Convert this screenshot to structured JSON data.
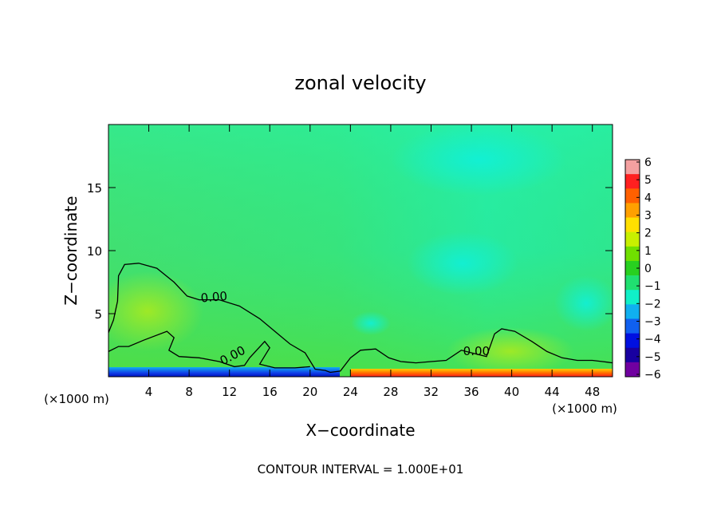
{
  "chart_data": {
    "type": "heatmap",
    "title": "zonal velocity",
    "xlabel": "X−coordinate",
    "ylabel": "Z−coordinate",
    "x_unit_left": "(×1000 m)",
    "x_unit_right": "(×1000 m)",
    "xlim": [
      0,
      50
    ],
    "ylim": [
      0,
      20
    ],
    "x_ticks": [
      4,
      8,
      12,
      16,
      20,
      24,
      28,
      32,
      36,
      40,
      44,
      48
    ],
    "x_tick_labels": [
      "4",
      "8",
      "12",
      "16",
      "20",
      "24",
      "28",
      "32",
      "36",
      "40",
      "44",
      "48"
    ],
    "y_ticks": [
      5,
      10,
      15
    ],
    "y_tick_labels": [
      "5",
      "10",
      "15"
    ],
    "footer": "CONTOUR INTERVAL = 1.000E+01",
    "contour_label": "0.00",
    "contour_labels": [
      {
        "text": "0.00",
        "x": 10.5,
        "z": 6.0,
        "angle": -5
      },
      {
        "text": "0.00",
        "x": 12.5,
        "z": 1.4,
        "angle": -28
      },
      {
        "text": "0.00",
        "x": 36.5,
        "z": 1.7,
        "angle": 0
      }
    ],
    "zero_contour": [
      [
        0,
        3.5
      ],
      [
        0.5,
        4.5
      ],
      [
        0.9,
        6.0
      ],
      [
        1.0,
        8.0
      ],
      [
        1.6,
        8.9
      ],
      [
        3.0,
        9.0
      ],
      [
        4.8,
        8.6
      ],
      [
        6.5,
        7.5
      ],
      [
        7.8,
        6.4
      ],
      [
        9.0,
        6.1
      ],
      [
        11.0,
        6.1
      ],
      [
        13.0,
        5.6
      ],
      [
        15.0,
        4.6
      ],
      [
        16.5,
        3.6
      ],
      [
        18.0,
        2.6
      ],
      [
        19.5,
        1.9
      ],
      [
        20.5,
        0.6
      ],
      [
        21.5,
        0.5
      ],
      [
        22.0,
        0.35
      ],
      [
        23.0,
        0.45
      ],
      [
        24.0,
        1.5
      ],
      [
        25.0,
        2.1
      ],
      [
        26.5,
        2.2
      ],
      [
        27.8,
        1.5
      ],
      [
        29.0,
        1.2
      ],
      [
        30.5,
        1.1
      ],
      [
        32.0,
        1.2
      ],
      [
        33.5,
        1.3
      ],
      [
        35.0,
        2.1
      ],
      [
        36.5,
        1.8
      ],
      [
        37.5,
        1.6
      ],
      [
        38.3,
        3.4
      ],
      [
        39.0,
        3.8
      ],
      [
        40.3,
        3.6
      ],
      [
        42.0,
        2.8
      ],
      [
        43.5,
        2.0
      ],
      [
        45.0,
        1.5
      ],
      [
        46.5,
        1.3
      ],
      [
        48.0,
        1.3
      ],
      [
        49.0,
        1.2
      ],
      [
        50.0,
        1.1
      ]
    ],
    "lower_contour": [
      [
        0,
        2.0
      ],
      [
        1.0,
        2.4
      ],
      [
        2.0,
        2.4
      ],
      [
        3.5,
        2.9
      ],
      [
        5.8,
        3.6
      ],
      [
        6.5,
        3.1
      ],
      [
        6.0,
        2.1
      ],
      [
        7.0,
        1.6
      ],
      [
        9.0,
        1.5
      ],
      [
        11.0,
        1.2
      ],
      [
        12.5,
        0.8
      ],
      [
        13.5,
        0.9
      ],
      [
        14.0,
        1.5
      ],
      [
        15.5,
        2.8
      ],
      [
        16.0,
        2.3
      ],
      [
        15.0,
        1.0
      ],
      [
        16.5,
        0.7
      ],
      [
        18.5,
        0.7
      ],
      [
        20.0,
        0.8
      ]
    ],
    "colorbar": {
      "ticks": [
        6,
        5,
        4,
        3,
        2,
        1,
        0,
        -1,
        -2,
        -3,
        -4,
        -5,
        -6
      ],
      "tick_labels": [
        "6",
        "5",
        "4",
        "3",
        "2",
        "1",
        "0",
        "−1",
        "−2",
        "−3",
        "−4",
        "−5",
        "−6"
      ],
      "colors": [
        "#f4a0a0",
        "#ff2020",
        "#ff6000",
        "#ffa000",
        "#ffe000",
        "#c8f000",
        "#70e000",
        "#28d020",
        "#20e070",
        "#10f0c8",
        "#10b0f0",
        "#1060f0",
        "#0010e0",
        "#1800a0",
        "#7000a0"
      ]
    }
  }
}
